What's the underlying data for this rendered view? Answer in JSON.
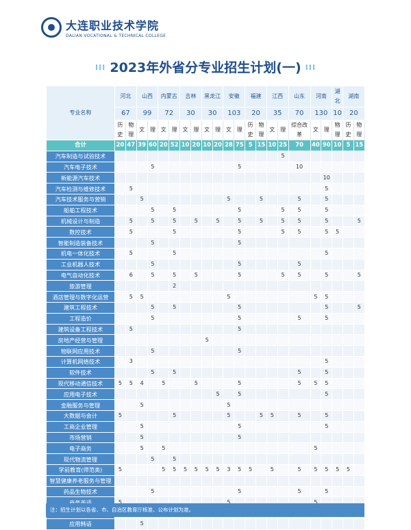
{
  "college": {
    "name_cn": "大连职业技术学院",
    "name_en": "DALIAN VOCATIONAL & TECHNICAL COLLEGE"
  },
  "title": "2023年外省分专业招生计划(一)",
  "table": {
    "major_header": "专业名称",
    "provinces": [
      {
        "name": "河北",
        "quota": "67",
        "span": 2
      },
      {
        "name": "山西",
        "quota": "99",
        "span": 2
      },
      {
        "name": "内蒙古",
        "quota": "72",
        "span": 2
      },
      {
        "name": "吉林",
        "quota": "30",
        "span": 2
      },
      {
        "name": "黑龙江",
        "quota": "30",
        "span": 2
      },
      {
        "name": "安徽",
        "quota": "103",
        "span": 2
      },
      {
        "name": "福建",
        "quota": "20",
        "span": 2
      },
      {
        "name": "江西",
        "quota": "35",
        "span": 2
      },
      {
        "name": "山东",
        "quota": "70",
        "span": 1
      },
      {
        "name": "河南",
        "quota": "130",
        "span": 2
      },
      {
        "name": "湖北",
        "quota": "10",
        "span": 1
      },
      {
        "name": "湖南",
        "quota": "20",
        "span": 2
      }
    ],
    "types": [
      "历史",
      "物理",
      "文",
      "理",
      "文",
      "理",
      "文",
      "理",
      "文",
      "理",
      "文",
      "理",
      "历史",
      "物理",
      "文",
      "理",
      "综合改革",
      "文",
      "理",
      "物理",
      "历史",
      "物理"
    ],
    "total_label": "合计",
    "totals": [
      "20",
      "47",
      "39",
      "60",
      "20",
      "52",
      "10",
      "20",
      "10",
      "20",
      "28",
      "75",
      "5",
      "15",
      "10",
      "25",
      "70",
      "40",
      "90",
      "10",
      "5",
      "15"
    ],
    "rows": [
      {
        "name": "汽车制造与试验技术",
        "values": [
          "",
          "",
          "",
          "",
          "",
          "",
          "",
          "",
          "",
          "",
          "",
          "",
          "",
          "",
          "",
          "5",
          "",
          "",
          "",
          "",
          "",
          ""
        ]
      },
      {
        "name": "汽车电子技术",
        "values": [
          "",
          "",
          "",
          "5",
          "",
          "",
          "",
          "",
          "",
          "",
          "",
          "5",
          "",
          "",
          "",
          "",
          "10",
          "",
          "",
          "",
          "",
          ""
        ]
      },
      {
        "name": "新能源汽车技术",
        "values": [
          "",
          "",
          "",
          "",
          "",
          "",
          "",
          "",
          "",
          "",
          "",
          "",
          "",
          "",
          "",
          "",
          "",
          "",
          "10",
          "",
          "",
          ""
        ]
      },
      {
        "name": "汽车检测与维修技术",
        "values": [
          "",
          "5",
          "",
          "",
          "",
          "",
          "",
          "",
          "",
          "",
          "",
          "",
          "",
          "",
          "",
          "",
          "",
          "",
          "5",
          "",
          "",
          ""
        ]
      },
      {
        "name": "汽车技术服务与营销",
        "values": [
          "",
          "",
          "5",
          "",
          "",
          "",
          "",
          "",
          "",
          "",
          "5",
          "",
          "",
          "5",
          "",
          "",
          "5",
          "",
          "5",
          "",
          "",
          ""
        ]
      },
      {
        "name": "船舶工程技术",
        "values": [
          "",
          "",
          "",
          "5",
          "",
          "5",
          "",
          "",
          "",
          "",
          "",
          "5",
          "",
          "",
          "",
          "5",
          "5",
          "",
          "5",
          "",
          "",
          ""
        ]
      },
      {
        "name": "机械设计与制造",
        "values": [
          "",
          "5",
          "",
          "5",
          "",
          "5",
          "",
          "5",
          "",
          "5",
          "",
          "5",
          "",
          "5",
          "",
          "5",
          "5",
          "",
          "5",
          "",
          "",
          "5"
        ]
      },
      {
        "name": "数控技术",
        "values": [
          "",
          "5",
          "",
          "",
          "",
          "5",
          "",
          "",
          "",
          "",
          "",
          "5",
          "",
          "",
          "",
          "5",
          "5",
          "",
          "5",
          "5",
          "",
          ""
        ]
      },
      {
        "name": "智能制造装备技术",
        "values": [
          "",
          "",
          "",
          "5",
          "",
          "",
          "",
          "",
          "",
          "",
          "",
          "5",
          "",
          "",
          "",
          "",
          "",
          "",
          "",
          "",
          "",
          ""
        ]
      },
      {
        "name": "机电一体化技术",
        "values": [
          "",
          "5",
          "",
          "",
          "",
          "5",
          "",
          "",
          "",
          "",
          "",
          "",
          "",
          "",
          "",
          "",
          "",
          "",
          "5",
          "",
          "",
          ""
        ]
      },
      {
        "name": "工业机器人技术",
        "values": [
          "",
          "",
          "",
          "5",
          "",
          "",
          "",
          "",
          "",
          "",
          "",
          "5",
          "",
          "",
          "",
          "",
          "5",
          "",
          "",
          "",
          "",
          ""
        ]
      },
      {
        "name": "电气自动化技术",
        "values": [
          "",
          "6",
          "",
          "5",
          "",
          "5",
          "",
          "5",
          "",
          "",
          "",
          "5",
          "",
          "",
          "",
          "5",
          "5",
          "",
          "5",
          "",
          "",
          "5"
        ]
      },
      {
        "name": "旅游管理",
        "values": [
          "",
          "",
          "",
          "",
          "",
          "2",
          "",
          "",
          "",
          "",
          "",
          "",
          "",
          "",
          "",
          "",
          "",
          "",
          "",
          "",
          "",
          ""
        ]
      },
      {
        "name": "酒店管理与数字化运营",
        "values": [
          "",
          "5",
          "5",
          "",
          "",
          "",
          "",
          "",
          "",
          "",
          "5",
          "",
          "",
          "",
          "",
          "",
          "",
          "5",
          "5",
          "",
          "",
          ""
        ]
      },
      {
        "name": "建筑工程技术",
        "values": [
          "",
          "",
          "",
          "5",
          "",
          "5",
          "",
          "",
          "",
          "",
          "",
          "5",
          "",
          "",
          "",
          "",
          "",
          "",
          "5",
          "",
          "",
          "5"
        ]
      },
      {
        "name": "工程造价",
        "values": [
          "",
          "",
          "",
          "5",
          "",
          "",
          "",
          "",
          "",
          "",
          "",
          "5",
          "",
          "",
          "",
          "",
          "5",
          "",
          "5",
          "",
          "",
          ""
        ]
      },
      {
        "name": "建筑设备工程技术",
        "values": [
          "",
          "5",
          "",
          "",
          "",
          "",
          "",
          "",
          "",
          "",
          "",
          "5",
          "",
          "",
          "",
          "",
          "",
          "",
          "",
          "",
          "",
          ""
        ]
      },
      {
        "name": "房地产经营与管理",
        "values": [
          "",
          "",
          "",
          "",
          "",
          "",
          "",
          "",
          "5",
          "",
          "",
          "",
          "",
          "",
          "",
          "",
          "",
          "",
          "",
          "",
          "",
          ""
        ]
      },
      {
        "name": "物联网应用技术",
        "values": [
          "",
          "",
          "",
          "5",
          "",
          "",
          "",
          "",
          "",
          "",
          "",
          "5",
          "",
          "",
          "",
          "",
          "",
          "",
          "",
          "",
          "",
          ""
        ]
      },
      {
        "name": "计算机网络技术",
        "values": [
          "",
          "3",
          "",
          "",
          "",
          "",
          "",
          "",
          "",
          "",
          "",
          "",
          "",
          "",
          "",
          "",
          "",
          "",
          "5",
          "",
          "",
          ""
        ]
      },
      {
        "name": "软件技术",
        "values": [
          "",
          "",
          "",
          "5",
          "",
          "5",
          "",
          "",
          "",
          "",
          "",
          "",
          "",
          "",
          "",
          "",
          "5",
          "",
          "5",
          "",
          "",
          ""
        ]
      },
      {
        "name": "现代移动通信技术",
        "values": [
          "5",
          "5",
          "4",
          "",
          "5",
          "",
          "",
          "5",
          "",
          "",
          "",
          "5",
          "",
          "",
          "",
          "",
          "5",
          "5",
          "5",
          "",
          "",
          ""
        ]
      },
      {
        "name": "应用电子技术",
        "values": [
          "",
          "",
          "",
          "",
          "",
          "",
          "",
          "",
          "",
          "5",
          "",
          "5",
          "",
          "",
          "",
          "",
          "",
          "",
          "5",
          "",
          "",
          ""
        ]
      },
      {
        "name": "金融服务与管理",
        "values": [
          "",
          "",
          "5",
          "",
          "",
          "",
          "",
          "",
          "",
          "",
          "5",
          "",
          "",
          "",
          "",
          "",
          "",
          "",
          "",
          "",
          "",
          ""
        ]
      },
      {
        "name": "大数据与会计",
        "values": [
          "5",
          "",
          "",
          "",
          "",
          "5",
          "",
          "",
          "",
          "",
          "5",
          "",
          "",
          "5",
          "5",
          "",
          "5",
          "",
          "5",
          "",
          "",
          ""
        ]
      },
      {
        "name": "工商企业管理",
        "values": [
          "",
          "",
          "5",
          "",
          "",
          "",
          "",
          "",
          "",
          "",
          "",
          "5",
          "",
          "",
          "",
          "",
          "",
          "",
          "5",
          "",
          "",
          ""
        ]
      },
      {
        "name": "市场营销",
        "values": [
          "",
          "",
          "5",
          "",
          "",
          "",
          "",
          "",
          "",
          "",
          "",
          "5",
          "",
          "",
          "",
          "",
          "",
          "",
          "",
          "",
          "",
          ""
        ]
      },
      {
        "name": "电子商务",
        "values": [
          "",
          "",
          "5",
          "",
          "5",
          "",
          "",
          "",
          "",
          "",
          "",
          "",
          "",
          "",
          "",
          "",
          "",
          "5",
          "",
          "",
          "",
          ""
        ]
      },
      {
        "name": "现代物流管理",
        "values": [
          "",
          "",
          "",
          "5",
          "",
          "5",
          "",
          "",
          "",
          "",
          "",
          "",
          "",
          "",
          "",
          "",
          "",
          "",
          "",
          "",
          "",
          ""
        ]
      },
      {
        "name": "学前教育(师范类)",
        "values": [
          "5",
          "",
          "",
          "",
          "5",
          "5",
          "5",
          "5",
          "5",
          "5",
          "3",
          "5",
          "5",
          "",
          "5",
          "",
          "5",
          "5",
          "5",
          "5",
          "5",
          ""
        ]
      },
      {
        "name": "智慧健康养老服务与管理",
        "values": [
          "",
          "",
          "",
          "",
          "",
          "",
          "",
          "",
          "",
          "",
          "",
          "",
          "",
          "",
          "",
          "",
          "",
          "",
          "",
          "",
          "",
          ""
        ]
      },
      {
        "name": "药品生物技术",
        "values": [
          "",
          "",
          "",
          "5",
          "",
          "",
          "",
          "",
          "",
          "",
          "",
          "5",
          "",
          "",
          "",
          "",
          "5",
          "",
          "5",
          "",
          "",
          ""
        ]
      },
      {
        "name": "商务英语",
        "values": [
          "5",
          "",
          "",
          "",
          "",
          "",
          "",
          "",
          "",
          "",
          "5",
          "",
          "",
          "",
          "",
          "",
          "",
          "5",
          "",
          "",
          "",
          ""
        ]
      },
      {
        "name": "商务日语",
        "values": [
          "",
          "3",
          "",
          "5",
          "",
          "5",
          "",
          "",
          "5",
          "",
          "",
          "",
          "",
          "",
          "",
          "",
          "5",
          "5",
          "",
          "",
          "",
          ""
        ]
      },
      {
        "name": "应用韩语",
        "values": [
          "",
          "",
          "5",
          "",
          "",
          "",
          "",
          "",
          "",
          "",
          "",
          "",
          "",
          "",
          "",
          "",
          "",
          "",
          "",
          "",
          "",
          ""
        ]
      }
    ]
  },
  "note": "注：招生计划以各省、市、自治区教育厅核准、公布计划为准。",
  "colors": {
    "brand": "#1f4e8c",
    "header": "#4a8ac9",
    "total": "#5cc1c4"
  }
}
